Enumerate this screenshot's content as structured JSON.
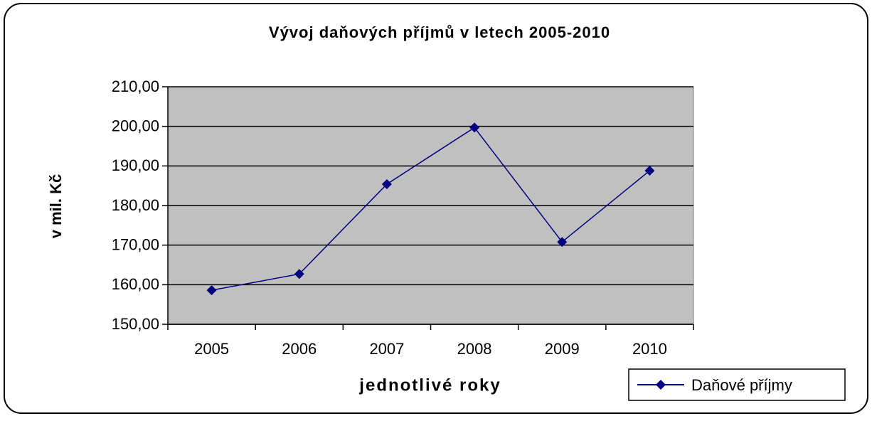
{
  "chart_data": {
    "type": "line",
    "title": "Vývoj daňových příjmů v letech 2005-2010",
    "x_label": "jednotlivé roky",
    "y_label": "v mil. Kč",
    "categories": [
      "2005",
      "2006",
      "2007",
      "2008",
      "2009",
      "2010"
    ],
    "series": [
      {
        "name": "Daňové příjmy",
        "color": "#000080",
        "values": [
          158.6,
          162.7,
          185.4,
          199.7,
          170.8,
          188.8
        ]
      }
    ],
    "ylim": [
      150,
      210
    ],
    "yticks": [
      {
        "value": 150,
        "label": "150,00"
      },
      {
        "value": 160,
        "label": "160,00"
      },
      {
        "value": 170,
        "label": "170,00"
      },
      {
        "value": 180,
        "label": "180,00"
      },
      {
        "value": 190,
        "label": "190,00"
      },
      {
        "value": 200,
        "label": "200,00"
      },
      {
        "value": 210,
        "label": "210,00"
      }
    ],
    "grid": true,
    "legend": "bottom-right",
    "plot_background": "#c0c0c0"
  }
}
